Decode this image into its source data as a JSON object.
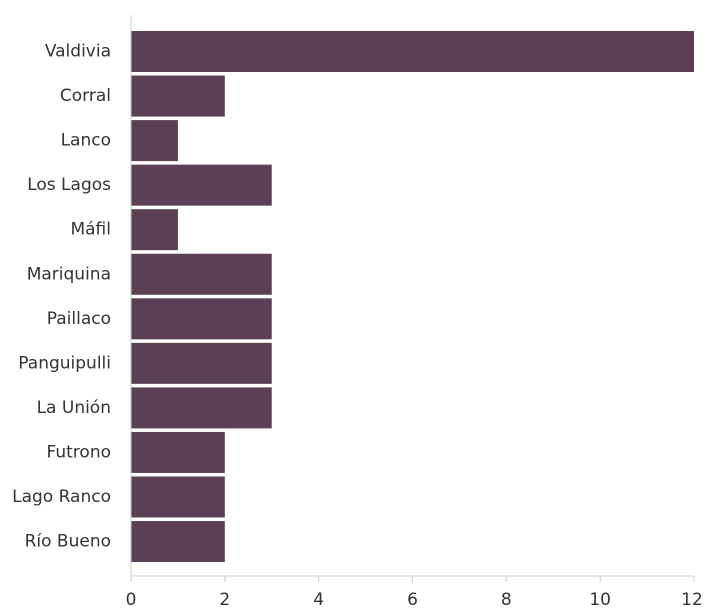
{
  "chart_data": {
    "type": "bar",
    "orientation": "horizontal",
    "categories": [
      "Valdivia",
      "Corral",
      "Lanco",
      "Los Lagos",
      "Máfil",
      "Mariquina",
      "Paillaco",
      "Panguipulli",
      "La Unión",
      "Futrono",
      "Lago Ranco",
      "Río Bueno"
    ],
    "values": [
      12,
      2,
      1,
      3,
      1,
      3,
      3,
      3,
      3,
      2,
      2,
      2
    ],
    "xlim": [
      0,
      12
    ],
    "xticks": [
      0,
      2,
      4,
      6,
      8,
      10,
      12
    ],
    "title": "",
    "xlabel": "",
    "ylabel": "",
    "grid": false,
    "legend": "none",
    "bar_color": "#5b4055"
  }
}
